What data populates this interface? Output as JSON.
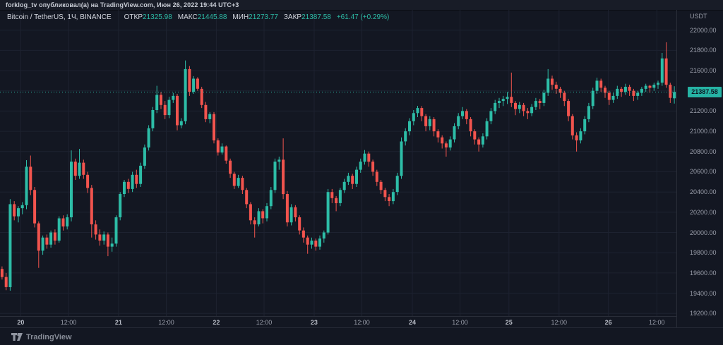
{
  "header": {
    "byline": "forklog_tv опубликовал(а) на TradingView.com, Июн 26, 2022 19:44 UTC+3"
  },
  "legend": {
    "symbol": "Bitcoin / TetherUS, 1Ч, BINANCE",
    "ohlc": [
      {
        "label": "ОТКР",
        "value": "21325.98"
      },
      {
        "label": "МАКС",
        "value": "21445.88"
      },
      {
        "label": "МИН",
        "value": "21273.77"
      },
      {
        "label": "ЗАКР",
        "value": "21387.58"
      }
    ],
    "change": "+61.47 (+0.29%)"
  },
  "price_axis": {
    "currency": "USDT",
    "visible_ticks": [
      22000,
      21800,
      21600,
      21200,
      21000,
      20800,
      20600,
      20400,
      20200,
      20000,
      19800,
      19600,
      19400,
      19200
    ],
    "last_price": 21387.58,
    "last_price_label": "21387.58"
  },
  "time_axis": {
    "labels": [
      {
        "text": "20",
        "i": 4.6,
        "major": true
      },
      {
        "text": "12:00",
        "i": 16.3,
        "major": false
      },
      {
        "text": "21",
        "i": 28.6,
        "major": true
      },
      {
        "text": "12:00",
        "i": 40.3,
        "major": false
      },
      {
        "text": "22",
        "i": 52.6,
        "major": true
      },
      {
        "text": "12:00",
        "i": 64.3,
        "major": false
      },
      {
        "text": "23",
        "i": 76.6,
        "major": true
      },
      {
        "text": "12:00",
        "i": 88.3,
        "major": false
      },
      {
        "text": "24",
        "i": 100.7,
        "major": true
      },
      {
        "text": "12:00",
        "i": 112.4,
        "major": false
      },
      {
        "text": "25",
        "i": 124.4,
        "major": true
      },
      {
        "text": "12:00",
        "i": 136.7,
        "major": false
      },
      {
        "text": "26",
        "i": 148.8,
        "major": true
      },
      {
        "text": "12:00",
        "i": 160.7,
        "major": false
      }
    ]
  },
  "footer": {
    "brand": "TradingView"
  },
  "colors": {
    "up": "#2dbda7",
    "down": "#f2544e",
    "bg": "#131722",
    "grid": "#1d2230",
    "axis_text": "#9b9fab",
    "label_bg": "#26b3a4",
    "label_text": "#0e1420",
    "border": "#2a2e39",
    "brand_text": "#868b96"
  },
  "chart_data": {
    "type": "candlestick",
    "title": "Bitcoin / TetherUS, 1Ч, BINANCE",
    "pair": "BTC/USDT",
    "interval": "1Ч",
    "exchange": "BINANCE",
    "price_range": [
      19174,
      22200
    ],
    "grid_step": 200,
    "grid_min": 19200,
    "grid_max": 22000,
    "last": {
      "open": 21325.98,
      "high": 21445.88,
      "low": 21273.77,
      "close": 21387.58,
      "change": 61.47,
      "change_pct": 0.29
    },
    "candles": [
      [
        19640,
        19665,
        19535,
        19560
      ],
      [
        19560,
        19600,
        19430,
        19460
      ],
      [
        19460,
        20330,
        19425,
        20280
      ],
      [
        20280,
        20310,
        20120,
        20160
      ],
      [
        20160,
        20260,
        20100,
        20240
      ],
      [
        20240,
        20300,
        20180,
        20270
      ],
      [
        20270,
        20715,
        20230,
        20650
      ],
      [
        20650,
        20760,
        20370,
        20420
      ],
      [
        20420,
        20450,
        20050,
        20090
      ],
      [
        20090,
        20110,
        19650,
        19820
      ],
      [
        19820,
        19970,
        19780,
        19950
      ],
      [
        19950,
        19980,
        19840,
        19880
      ],
      [
        19880,
        20020,
        19850,
        20000
      ],
      [
        20000,
        20030,
        19880,
        19920
      ],
      [
        19920,
        20160,
        19900,
        20140
      ],
      [
        20140,
        20170,
        20020,
        20060
      ],
      [
        20060,
        20180,
        20030,
        20150
      ],
      [
        20150,
        20812,
        20110,
        20700
      ],
      [
        20700,
        20730,
        20520,
        20560
      ],
      [
        20560,
        20826,
        20530,
        20690
      ],
      [
        20690,
        20720,
        20530,
        20570
      ],
      [
        20570,
        20600,
        20390,
        20440
      ],
      [
        20440,
        20470,
        19950,
        20080
      ],
      [
        20080,
        20120,
        19930,
        19980
      ],
      [
        19980,
        20030,
        19870,
        19920
      ],
      [
        19920,
        20010,
        19880,
        19980
      ],
      [
        19980,
        20000,
        19766,
        19860
      ],
      [
        19860,
        19950,
        19810,
        19890
      ],
      [
        19890,
        20170,
        19860,
        20150
      ],
      [
        20150,
        20400,
        20120,
        20380
      ],
      [
        20380,
        20520,
        20350,
        20500
      ],
      [
        20500,
        20530,
        20390,
        20430
      ],
      [
        20430,
        20600,
        20400,
        20570
      ],
      [
        20570,
        20620,
        20440,
        20480
      ],
      [
        20480,
        20690,
        20450,
        20660
      ],
      [
        20660,
        20870,
        20630,
        20840
      ],
      [
        20840,
        21060,
        20810,
        21030
      ],
      [
        21030,
        21240,
        21000,
        21210
      ],
      [
        21210,
        21450,
        21180,
        21360
      ],
      [
        21360,
        21390,
        21220,
        21260
      ],
      [
        21260,
        21300,
        21120,
        21160
      ],
      [
        21160,
        21340,
        21130,
        21310
      ],
      [
        21310,
        21380,
        21280,
        21350
      ],
      [
        21350,
        21370,
        21010,
        21060
      ],
      [
        21060,
        21130,
        21030,
        21100
      ],
      [
        21100,
        21700,
        21070,
        21615
      ],
      [
        21615,
        21645,
        21350,
        21390
      ],
      [
        21390,
        21545,
        21370,
        21520
      ],
      [
        21520,
        21535,
        21400,
        21420
      ],
      [
        21420,
        21440,
        21230,
        21260
      ],
      [
        21260,
        21290,
        21090,
        21120
      ],
      [
        21120,
        21190,
        21080,
        21170
      ],
      [
        21170,
        21190,
        20880,
        20910
      ],
      [
        20910,
        20930,
        20760,
        20790
      ],
      [
        20790,
        20880,
        20770,
        20850
      ],
      [
        20850,
        20860,
        20680,
        20710
      ],
      [
        20710,
        20730,
        20540,
        20580
      ],
      [
        20580,
        20600,
        20430,
        20460
      ],
      [
        20460,
        20570,
        20440,
        20540
      ],
      [
        20540,
        20560,
        20380,
        20420
      ],
      [
        20420,
        20440,
        20240,
        20280
      ],
      [
        20280,
        20300,
        20080,
        20120
      ],
      [
        20120,
        20150,
        19950,
        20080
      ],
      [
        20080,
        20240,
        20060,
        20210
      ],
      [
        20210,
        20230,
        20090,
        20140
      ],
      [
        20140,
        20290,
        20110,
        20260
      ],
      [
        20260,
        20450,
        20230,
        20420
      ],
      [
        20420,
        20730,
        20390,
        20700
      ],
      [
        20700,
        20750,
        20620,
        20720
      ],
      [
        20720,
        20930,
        20330,
        20380
      ],
      [
        20380,
        20410,
        20060,
        20100
      ],
      [
        20100,
        20280,
        20070,
        20250
      ],
      [
        20250,
        20270,
        20110,
        20150
      ],
      [
        20150,
        20170,
        19980,
        20020
      ],
      [
        20020,
        20050,
        19900,
        19950
      ],
      [
        19950,
        19970,
        19790,
        19880
      ],
      [
        19880,
        19950,
        19840,
        19920
      ],
      [
        19920,
        19940,
        19820,
        19860
      ],
      [
        19860,
        19970,
        19830,
        19940
      ],
      [
        19940,
        20020,
        19900,
        20000
      ],
      [
        20000,
        20430,
        19980,
        20400
      ],
      [
        20400,
        20430,
        20290,
        20340
      ],
      [
        20340,
        20360,
        20210,
        20290
      ],
      [
        20290,
        20440,
        20260,
        20420
      ],
      [
        20420,
        20530,
        20390,
        20500
      ],
      [
        20500,
        20590,
        20470,
        20560
      ],
      [
        20560,
        20580,
        20430,
        20480
      ],
      [
        20480,
        20650,
        20450,
        20620
      ],
      [
        20620,
        20730,
        20590,
        20700
      ],
      [
        20700,
        20815,
        20670,
        20780
      ],
      [
        20780,
        20800,
        20650,
        20700
      ],
      [
        20700,
        20720,
        20560,
        20600
      ],
      [
        20600,
        20620,
        20460,
        20500
      ],
      [
        20500,
        20520,
        20380,
        20420
      ],
      [
        20420,
        20440,
        20310,
        20350
      ],
      [
        20350,
        20380,
        20260,
        20310
      ],
      [
        20310,
        20430,
        20280,
        20400
      ],
      [
        20400,
        20590,
        20370,
        20560
      ],
      [
        20560,
        20940,
        20530,
        20900
      ],
      [
        20900,
        21030,
        20860,
        21000
      ],
      [
        21000,
        21130,
        20960,
        21100
      ],
      [
        21100,
        21210,
        21060,
        21180
      ],
      [
        21180,
        21252,
        21140,
        21230
      ],
      [
        21230,
        21250,
        21100,
        21150
      ],
      [
        21150,
        21170,
        21000,
        21050
      ],
      [
        21050,
        21150,
        21010,
        21120
      ],
      [
        21120,
        21140,
        20950,
        21000
      ],
      [
        21000,
        21020,
        20890,
        20940
      ],
      [
        20940,
        20960,
        20830,
        20880
      ],
      [
        20880,
        20900,
        20750,
        20840
      ],
      [
        20840,
        20950,
        20810,
        20920
      ],
      [
        20920,
        21080,
        20890,
        21050
      ],
      [
        21050,
        21180,
        21020,
        21150
      ],
      [
        21150,
        21240,
        21120,
        21200
      ],
      [
        21200,
        21220,
        21070,
        21120
      ],
      [
        21120,
        21140,
        20950,
        21000
      ],
      [
        21000,
        21020,
        20870,
        20920
      ],
      [
        20920,
        20940,
        20800,
        20870
      ],
      [
        20870,
        20980,
        20840,
        20950
      ],
      [
        20950,
        21130,
        20920,
        21100
      ],
      [
        21100,
        21230,
        21070,
        21200
      ],
      [
        21200,
        21310,
        21170,
        21280
      ],
      [
        21280,
        21330,
        21230,
        21300
      ],
      [
        21300,
        21350,
        21250,
        21320
      ],
      [
        21320,
        21390,
        21270,
        21340
      ],
      [
        21340,
        21580,
        21240,
        21280
      ],
      [
        21280,
        21300,
        21160,
        21220
      ],
      [
        21220,
        21290,
        21180,
        21260
      ],
      [
        21260,
        21280,
        21150,
        21200
      ],
      [
        21200,
        21230,
        21120,
        21180
      ],
      [
        21180,
        21270,
        21150,
        21240
      ],
      [
        21240,
        21330,
        21210,
        21300
      ],
      [
        21300,
        21320,
        21220,
        21280
      ],
      [
        21280,
        21410,
        21250,
        21380
      ],
      [
        21380,
        21615,
        21350,
        21520
      ],
      [
        21520,
        21550,
        21410,
        21460
      ],
      [
        21460,
        21490,
        21370,
        21420
      ],
      [
        21420,
        21440,
        21330,
        21380
      ],
      [
        21380,
        21400,
        21250,
        21300
      ],
      [
        21300,
        21320,
        21100,
        21150
      ],
      [
        21150,
        21170,
        20920,
        20960
      ],
      [
        20960,
        20990,
        20800,
        20910
      ],
      [
        20910,
        21030,
        20880,
        21000
      ],
      [
        21000,
        21150,
        20970,
        21120
      ],
      [
        21120,
        21280,
        21090,
        21250
      ],
      [
        21250,
        21430,
        21220,
        21400
      ],
      [
        21400,
        21530,
        21370,
        21500
      ],
      [
        21500,
        21520,
        21390,
        21430
      ],
      [
        21430,
        21450,
        21330,
        21380
      ],
      [
        21380,
        21400,
        21260,
        21310
      ],
      [
        21310,
        21380,
        21280,
        21350
      ],
      [
        21350,
        21450,
        21320,
        21420
      ],
      [
        21420,
        21440,
        21340,
        21390
      ],
      [
        21390,
        21470,
        21360,
        21440
      ],
      [
        21440,
        21460,
        21350,
        21400
      ],
      [
        21400,
        21420,
        21300,
        21350
      ],
      [
        21350,
        21400,
        21310,
        21380
      ],
      [
        21380,
        21440,
        21350,
        21420
      ],
      [
        21420,
        21470,
        21390,
        21450
      ],
      [
        21450,
        21460,
        21380,
        21430
      ],
      [
        21430,
        21480,
        21400,
        21460
      ],
      [
        21460,
        21500,
        21420,
        21480
      ],
      [
        21480,
        21775,
        21450,
        21720
      ],
      [
        21720,
        21880,
        21430,
        21460
      ],
      [
        21460,
        21480,
        21280,
        21330
      ],
      [
        21325.98,
        21445.88,
        21273.77,
        21387.58
      ]
    ]
  }
}
